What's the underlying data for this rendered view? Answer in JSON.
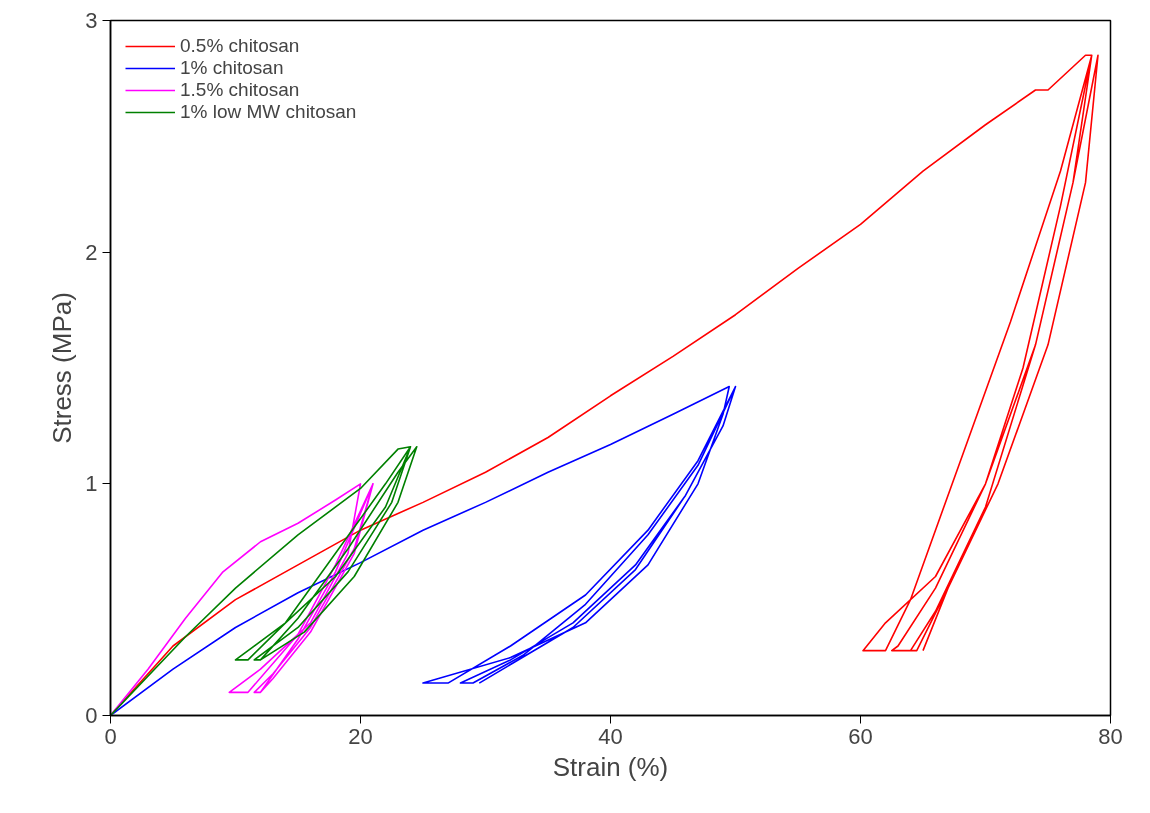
{
  "chart_data": {
    "type": "line",
    "xlabel": "Strain (%)",
    "ylabel": "Stress (MPa)",
    "xlim": [
      0,
      80
    ],
    "ylim": [
      0,
      3
    ],
    "xticks": [
      0,
      20,
      40,
      60,
      80
    ],
    "yticks": [
      0,
      1,
      2,
      3
    ],
    "grid": false,
    "legend": "top left",
    "marker": "none",
    "line_style": "solid",
    "series": [
      {
        "name": "0.5% chitosan",
        "color": "#ff0000",
        "x": [
          0,
          5,
          10,
          15,
          20,
          25,
          30,
          35,
          40,
          45,
          50,
          55,
          60,
          65,
          70,
          74,
          75,
          78,
          78.5,
          76,
          73,
          70,
          66,
          62,
          60.2,
          62,
          64,
          68,
          72,
          76,
          78.5,
          77,
          74,
          70,
          66,
          63,
          62.5,
          64,
          66,
          70,
          74,
          77,
          79,
          78,
          75,
          71,
          67,
          64.5,
          64,
          66,
          70,
          74,
          77,
          79,
          78,
          75,
          71,
          67,
          65
        ],
        "values": [
          0,
          0.3,
          0.5,
          0.65,
          0.8,
          0.92,
          1.05,
          1.2,
          1.38,
          1.55,
          1.73,
          1.93,
          2.12,
          2.35,
          2.55,
          2.7,
          2.7,
          2.85,
          2.85,
          2.2,
          1.5,
          1.0,
          0.6,
          0.4,
          0.28,
          0.28,
          0.5,
          1.1,
          1.7,
          2.35,
          2.85,
          2.3,
          1.6,
          1.0,
          0.55,
          0.3,
          0.28,
          0.28,
          0.45,
          0.9,
          1.6,
          2.3,
          2.85,
          2.3,
          1.6,
          1.0,
          0.55,
          0.28,
          0.28,
          0.45,
          0.9,
          1.6,
          2.3,
          2.85,
          2.3,
          1.6,
          1.0,
          0.55,
          0.28
        ]
      },
      {
        "name": "1% chitosan",
        "color": "#0000ff",
        "x": [
          0,
          5,
          10,
          15,
          20,
          25,
          30,
          35,
          40,
          45,
          49.5,
          49,
          47,
          43,
          38,
          32,
          25,
          27,
          32,
          38,
          43,
          47,
          50,
          49,
          46,
          42,
          37,
          32,
          28,
          29,
          33,
          38,
          43,
          47,
          50,
          49,
          46,
          42,
          37,
          32,
          29.5
        ],
        "values": [
          0,
          0.2,
          0.38,
          0.53,
          0.66,
          0.8,
          0.92,
          1.05,
          1.17,
          1.3,
          1.42,
          1.3,
          1.0,
          0.65,
          0.4,
          0.25,
          0.14,
          0.14,
          0.3,
          0.52,
          0.8,
          1.1,
          1.42,
          1.25,
          0.95,
          0.65,
          0.4,
          0.24,
          0.14,
          0.14,
          0.26,
          0.48,
          0.78,
          1.08,
          1.42,
          1.25,
          0.95,
          0.63,
          0.38,
          0.22,
          0.14
        ]
      },
      {
        "name": "1.5% chitosan",
        "color": "#ff00ff",
        "x": [
          0,
          3,
          6,
          9,
          12,
          15,
          18,
          20,
          19,
          16,
          12,
          9.5,
          11,
          15,
          18,
          21,
          19.5,
          16,
          13,
          11.5,
          12,
          15,
          18,
          21,
          19.5,
          16,
          13,
          12
        ],
        "values": [
          0,
          0.2,
          0.42,
          0.62,
          0.75,
          0.83,
          0.93,
          1.0,
          0.7,
          0.4,
          0.2,
          0.1,
          0.1,
          0.35,
          0.65,
          1.0,
          0.72,
          0.38,
          0.18,
          0.1,
          0.1,
          0.33,
          0.62,
          1.0,
          0.7,
          0.36,
          0.16,
          0.1
        ]
      },
      {
        "name": "1% low MW chitosan",
        "color": "#008000",
        "x": [
          0,
          6,
          10,
          15,
          20,
          23,
          24,
          22,
          18,
          14,
          10,
          11,
          14,
          18,
          22,
          24,
          22.5,
          19,
          15,
          11.5,
          12,
          15,
          19,
          23,
          24.5,
          23,
          19.5,
          15.5,
          12
        ],
        "values": [
          0,
          0.34,
          0.55,
          0.78,
          0.98,
          1.15,
          1.16,
          0.9,
          0.6,
          0.4,
          0.24,
          0.24,
          0.4,
          0.7,
          1.0,
          1.16,
          0.92,
          0.62,
          0.38,
          0.24,
          0.24,
          0.42,
          0.72,
          1.05,
          1.16,
          0.92,
          0.6,
          0.36,
          0.24
        ]
      }
    ]
  }
}
